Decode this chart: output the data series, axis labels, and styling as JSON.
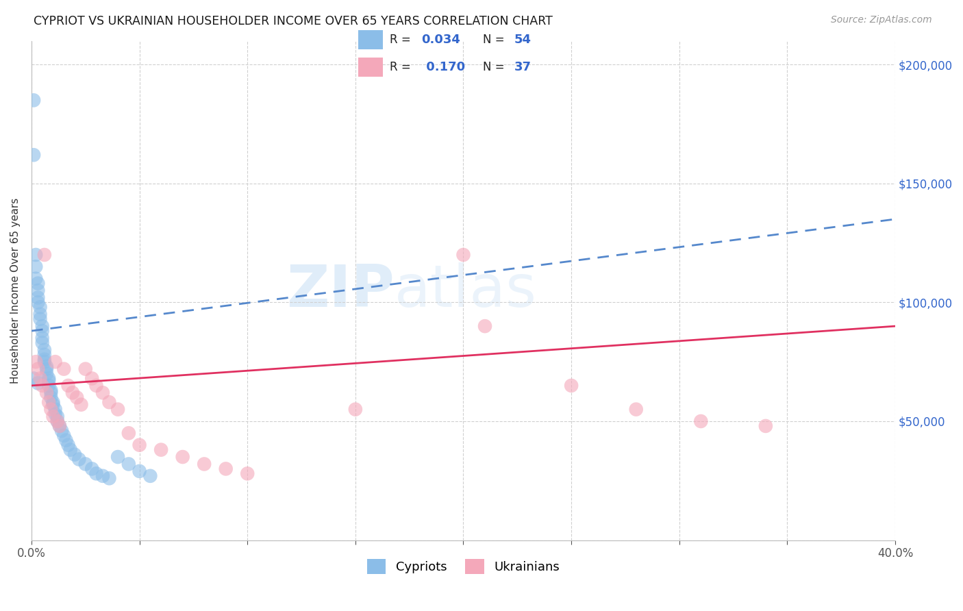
{
  "title": "CYPRIOT VS UKRAINIAN HOUSEHOLDER INCOME OVER 65 YEARS CORRELATION CHART",
  "source": "Source: ZipAtlas.com",
  "ylabel": "Householder Income Over 65 years",
  "xmin": 0.0,
  "xmax": 0.4,
  "ymin": 0,
  "ymax": 210000,
  "yticks": [
    0,
    50000,
    100000,
    150000,
    200000
  ],
  "cypriot_color": "#8bbde8",
  "ukrainian_color": "#f4a8ba",
  "cypriot_trend_color": "#5588cc",
  "ukrainian_trend_color": "#e03060",
  "R_cypriot": "0.034",
  "N_cypriot": "54",
  "R_ukrainian": "0.170",
  "N_ukrainian": "37",
  "background_color": "#ffffff",
  "grid_color": "#d0d0d0",
  "right_axis_color": "#3366cc",
  "cypriot_trend_y0": 88000,
  "cypriot_trend_y1": 135000,
  "ukrainian_trend_y0": 65000,
  "ukrainian_trend_y1": 90000,
  "cypriot_x": [
    0.001,
    0.001,
    0.002,
    0.002,
    0.002,
    0.003,
    0.003,
    0.003,
    0.003,
    0.004,
    0.004,
    0.004,
    0.005,
    0.005,
    0.005,
    0.005,
    0.006,
    0.006,
    0.006,
    0.006,
    0.007,
    0.007,
    0.007,
    0.008,
    0.008,
    0.008,
    0.009,
    0.009,
    0.009,
    0.01,
    0.01,
    0.011,
    0.011,
    0.012,
    0.012,
    0.013,
    0.014,
    0.015,
    0.016,
    0.017,
    0.018,
    0.02,
    0.022,
    0.025,
    0.028,
    0.03,
    0.033,
    0.036,
    0.04,
    0.045,
    0.05,
    0.055,
    0.001,
    0.003
  ],
  "cypriot_y": [
    185000,
    162000,
    120000,
    115000,
    110000,
    108000,
    105000,
    102000,
    100000,
    98000,
    95000,
    93000,
    90000,
    88000,
    85000,
    83000,
    80000,
    78000,
    76000,
    75000,
    73000,
    72000,
    70000,
    68000,
    67000,
    65000,
    63000,
    62000,
    60000,
    58000,
    57000,
    55000,
    53000,
    52000,
    50000,
    48000,
    46000,
    44000,
    42000,
    40000,
    38000,
    36000,
    34000,
    32000,
    30000,
    28000,
    27000,
    26000,
    35000,
    32000,
    29000,
    27000,
    68000,
    66000
  ],
  "ukrainian_x": [
    0.002,
    0.003,
    0.004,
    0.005,
    0.006,
    0.007,
    0.008,
    0.009,
    0.01,
    0.011,
    0.012,
    0.013,
    0.015,
    0.017,
    0.019,
    0.021,
    0.023,
    0.025,
    0.028,
    0.03,
    0.033,
    0.036,
    0.04,
    0.045,
    0.05,
    0.06,
    0.07,
    0.08,
    0.09,
    0.1,
    0.15,
    0.2,
    0.21,
    0.25,
    0.28,
    0.31,
    0.34
  ],
  "ukrainian_y": [
    75000,
    72000,
    68000,
    65000,
    120000,
    62000,
    58000,
    55000,
    52000,
    75000,
    50000,
    48000,
    72000,
    65000,
    62000,
    60000,
    57000,
    72000,
    68000,
    65000,
    62000,
    58000,
    55000,
    45000,
    40000,
    38000,
    35000,
    32000,
    30000,
    28000,
    55000,
    120000,
    90000,
    65000,
    55000,
    50000,
    48000
  ]
}
